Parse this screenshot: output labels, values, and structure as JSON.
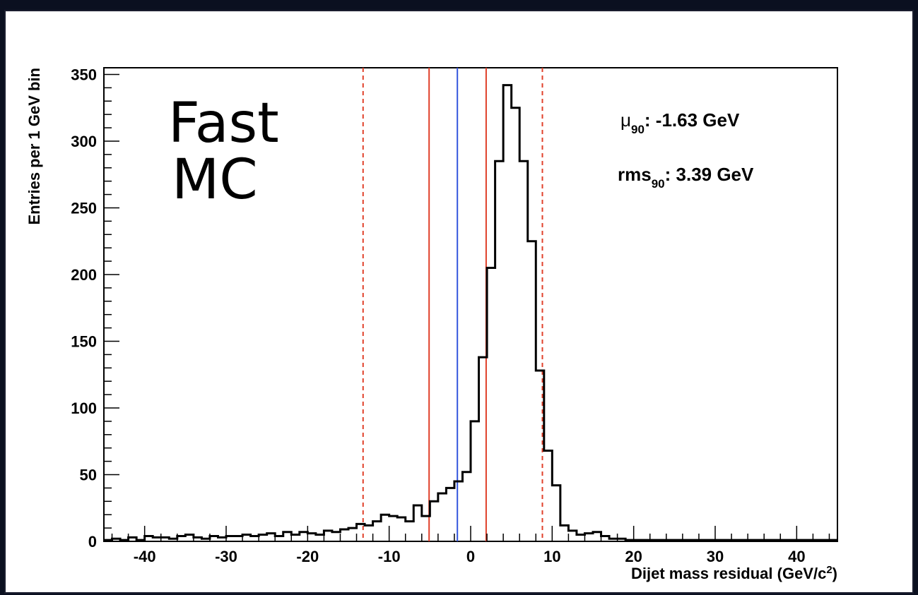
{
  "chart_data": {
    "type": "bar",
    "style": "step-histogram",
    "xlabel": "Dijet mass residual (GeV/c",
    "xlabel_sup": "2",
    "xlabel_end": ")",
    "ylabel": "Entries per 1 GeV bin",
    "xlim": [
      -45,
      45
    ],
    "ylim": [
      0,
      355
    ],
    "x_ticks": [
      -40,
      -30,
      -20,
      -10,
      0,
      10,
      20,
      30,
      40
    ],
    "y_ticks": [
      0,
      50,
      100,
      150,
      200,
      250,
      300,
      350
    ],
    "bin_width": 1,
    "bin_start": -45,
    "values": [
      1,
      2,
      1,
      3,
      1,
      4,
      3,
      3,
      2,
      4,
      5,
      3,
      2,
      4,
      3,
      4,
      4,
      5,
      4,
      5,
      6,
      4,
      7,
      5,
      7,
      6,
      5,
      8,
      7,
      9,
      10,
      13,
      12,
      15,
      20,
      19,
      18,
      15,
      27,
      19,
      30,
      36,
      40,
      45,
      52,
      90,
      138,
      205,
      285,
      342,
      325,
      285,
      225,
      128,
      68,
      42,
      12,
      8,
      5,
      6,
      7,
      4,
      2,
      2,
      1,
      1,
      1,
      1,
      1,
      1,
      1,
      1,
      1,
      1,
      1,
      1,
      1,
      1,
      1,
      1,
      1,
      1,
      1,
      1,
      1,
      1,
      1,
      1,
      1,
      1
    ],
    "vertical_lines": [
      {
        "x": -1.63,
        "color": "#3355dd",
        "style": "solid"
      },
      {
        "x": -5.1,
        "color": "#e0402a",
        "style": "solid"
      },
      {
        "x": 1.9,
        "color": "#e0402a",
        "style": "solid"
      },
      {
        "x": -13.2,
        "color": "#e0402a",
        "style": "dashed"
      },
      {
        "x": 8.8,
        "color": "#e0402a",
        "style": "dashed"
      }
    ],
    "annotations": {
      "label_line1": "Fast",
      "label_line2": "MC",
      "mu_symbol": "μ",
      "mu_sub": "90",
      "mu_text": ": -1.63 GeV",
      "rms_symbol": "rms",
      "rms_sub": "90",
      "rms_text": ": 3.39 GeV"
    },
    "colors": {
      "histogram": "#000000",
      "background": "#0b1020"
    }
  }
}
